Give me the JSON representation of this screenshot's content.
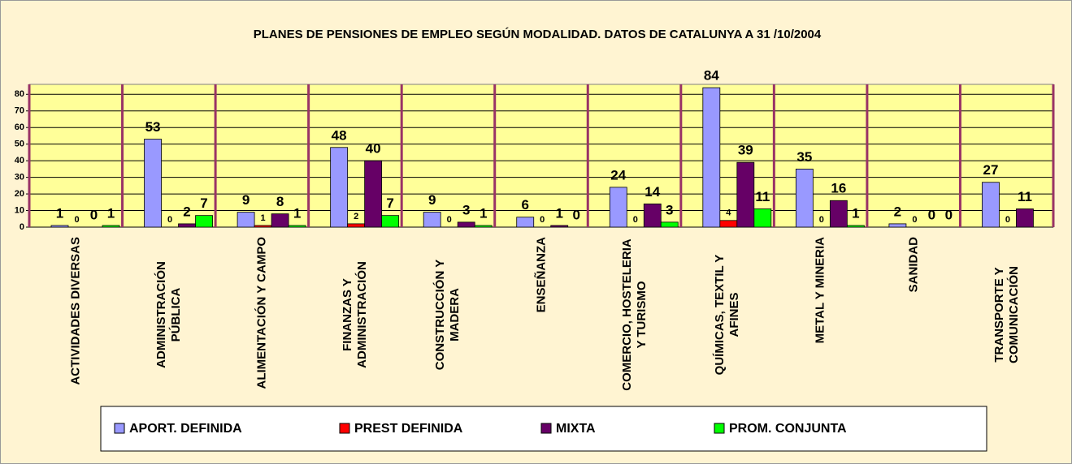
{
  "chart_data": {
    "type": "bar",
    "title": "PLANES DE PENSIONES DE EMPLEO SEGÚN MODALIDAD. DATOS DE CATALUNYA A 31 /10/2004",
    "categories": [
      "ACTIVIDADES DIVERSAS",
      "ADMINISTRACIÓN PÚBLICA",
      "ALIMENTACIÓN Y CAMPO",
      "FINANZAS Y ADMINISTRACIÓN",
      "CONSTRUCCIÓN Y MADERA",
      "ENSEÑANZA",
      "COMERCIO, HOSTELERIA Y TURISMO",
      "QUÍMICAS, TEXTIL Y AFINES",
      "METAL Y MINERIA",
      "SANIDAD",
      "TRANSPORTE Y COMUNICACIÓN"
    ],
    "series": [
      {
        "name": "APORT. DEFINIDA",
        "color": "#9999FF",
        "values": [
          1,
          53,
          9,
          48,
          9,
          6,
          24,
          84,
          35,
          2,
          27
        ]
      },
      {
        "name": "PREST DEFINIDA",
        "color": "#FF0000",
        "values": [
          0,
          0,
          1,
          2,
          0,
          0,
          0,
          4,
          0,
          0,
          0
        ]
      },
      {
        "name": "MIXTA",
        "color": "#660066",
        "values": [
          0,
          2,
          8,
          40,
          3,
          1,
          14,
          39,
          16,
          0,
          11
        ]
      },
      {
        "name": "PROM. CONJUNTA",
        "color": "#00FF00",
        "values": [
          1,
          7,
          1,
          7,
          1,
          0,
          3,
          11,
          1,
          0,
          null
        ]
      }
    ],
    "ylim": [
      0,
      86
    ],
    "yticks": [
      0,
      10,
      20,
      30,
      40,
      50,
      60,
      70,
      80
    ],
    "legend": "bottom"
  }
}
